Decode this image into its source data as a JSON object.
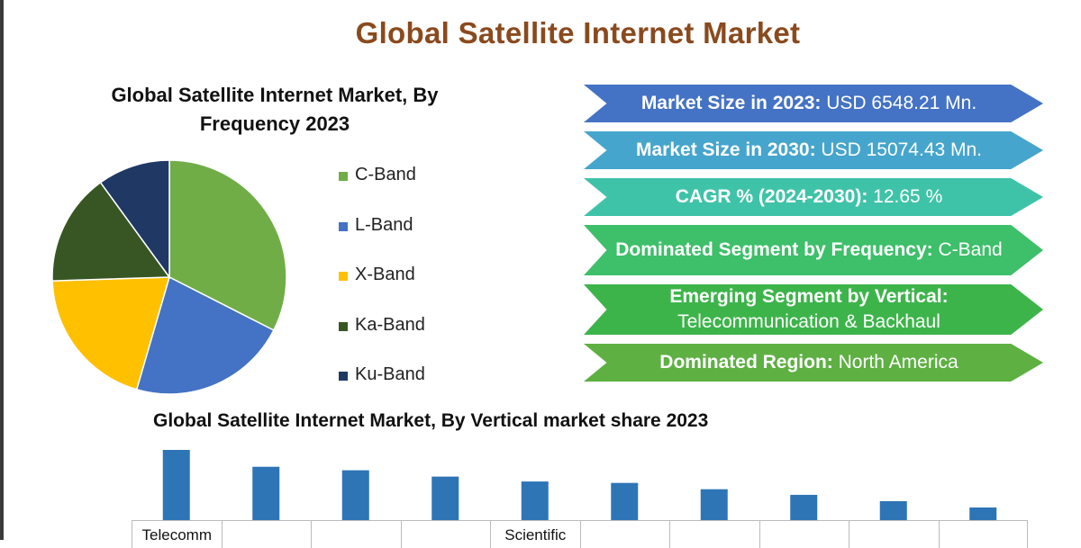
{
  "title": "Global Satellite Internet Market",
  "pie_title_line1": "Global Satellite Internet Market, By",
  "pie_title_line2": "Frequency 2023",
  "bar_title": "Global Satellite Internet Market, By Vertical market share  2023",
  "banners": [
    {
      "label": "Market Size in 2023:",
      "value": " USD 6548.21 Mn.",
      "color": "#4472c4"
    },
    {
      "label": "Market Size in 2030:",
      "value": " USD 15074.43 Mn.",
      "color": "#46a5cc"
    },
    {
      "label": "CAGR % (2024-2030):",
      "value": " 12.65 %",
      "color": "#3fc3a8"
    },
    {
      "label": "Dominated Segment by Frequency:",
      "value": " C-Band",
      "color": "#3ebf6a"
    },
    {
      "label": "Emerging Segment by Vertical:",
      "value": " Telecommunication & Backhaul",
      "color": "#3db44a"
    },
    {
      "label": "Dominated Region:",
      "value": " North America",
      "color": "#5eb043"
    }
  ],
  "chart_data": [
    {
      "type": "pie",
      "title": "Global Satellite Internet Market, By Frequency 2023",
      "legend_position": "right",
      "labels": [
        "C-Band",
        "L-Band",
        "X-Band",
        "Ka-Band",
        "Ku-Band"
      ],
      "values": [
        32.5,
        22,
        20,
        15.5,
        10
      ],
      "colors": [
        "#70ad47",
        "#4472c4",
        "#ffc000",
        "#375623",
        "#203864"
      ]
    },
    {
      "type": "bar",
      "title": "Global Satellite Internet Market, By Vertical market share  2023",
      "categories": [
        "Telecomm",
        "",
        "",
        "",
        "Scientific",
        "",
        "",
        "",
        "",
        ""
      ],
      "values": [
        100,
        76,
        71,
        62,
        55,
        53,
        44,
        36,
        27,
        18
      ],
      "color": "#2e75b6"
    }
  ]
}
